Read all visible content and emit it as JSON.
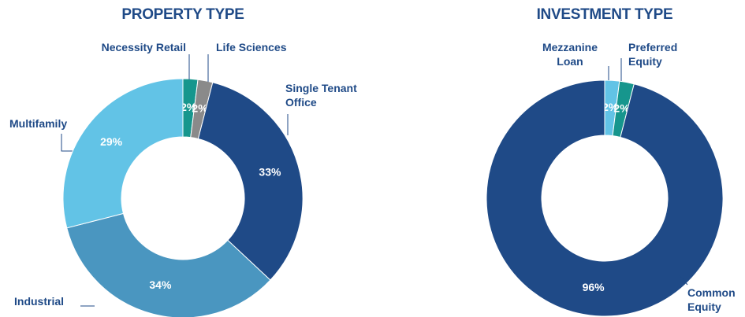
{
  "chart_data": [
    {
      "type": "pie",
      "title": "PROPERTY TYPE",
      "categories": [
        "Necessity Retail",
        "Life Sciences",
        "Single Tenant Office",
        "Multifamily",
        "Industrial"
      ],
      "values": [
        2,
        2,
        33,
        34,
        29
      ],
      "value_labels": [
        "2%",
        "2%",
        "33%",
        "34%",
        "29%"
      ],
      "colors": [
        "#16968d",
        "#8a8a8a",
        "#1f4a87",
        "#4a96c0",
        "#62c3e6"
      ]
    },
    {
      "type": "pie",
      "title": "INVESTMENT TYPE",
      "categories": [
        "Mezzanine Loan",
        "Preferred Equity",
        "Common Equity"
      ],
      "values": [
        2,
        2,
        96
      ],
      "value_labels": [
        "2%",
        "2%",
        "96%"
      ],
      "colors": [
        "#62c3e6",
        "#16968d",
        "#1f4a87"
      ]
    }
  ]
}
